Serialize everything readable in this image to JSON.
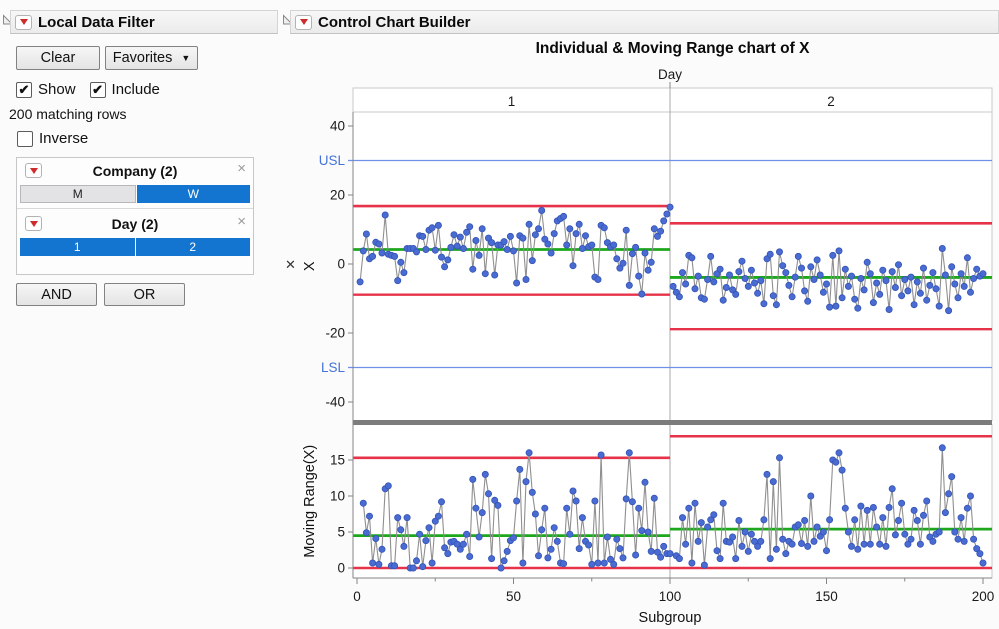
{
  "local_data_filter": {
    "title": "Local Data Filter",
    "clear_label": "Clear",
    "favorites_label": "Favorites",
    "show_label": "Show",
    "show_checked": true,
    "include_label": "Include",
    "include_checked": true,
    "matching_rows_text": "200 matching rows",
    "inverse_label": "Inverse",
    "inverse_checked": false,
    "filters": [
      {
        "label": "Company (2)",
        "values": [
          {
            "label": "M",
            "selected": false
          },
          {
            "label": "W",
            "selected": true
          }
        ]
      },
      {
        "label": "Day (2)",
        "values": [
          {
            "label": "1",
            "selected": true
          },
          {
            "label": "2",
            "selected": true
          }
        ]
      }
    ],
    "and_label": "AND",
    "or_label": "OR"
  },
  "report": {
    "title": "Control Chart Builder"
  },
  "colors": {
    "selection_blue": "#1375cf",
    "point_blue": "#4a6bd2",
    "point_edge_blue": "#3354b5",
    "connect_gray": "#8f8f8f",
    "limit_red": "#e73349",
    "center_green": "#1ca71c",
    "spec_blue": "#6f8fe8",
    "spec_label_blue": "#4472d8",
    "frame_gray": "#c8c8c8",
    "axis_gray": "#858585",
    "splitter_gray": "#7c7c7c",
    "menu_icon_red": "#cf2b2b"
  },
  "chart_data": {
    "type": "line",
    "title": "Individual & Moving Range chart of X",
    "phase_label": "Day",
    "phases": [
      "1",
      "2"
    ],
    "xlabel": "Subgroup",
    "xlim": [
      0,
      200
    ],
    "x_ticks_major": [
      0,
      50,
      100,
      150,
      200
    ],
    "x_ticks_minor": [
      25,
      75,
      125,
      175
    ],
    "grid": false,
    "legend": "none",
    "panels": [
      {
        "name": "Individuals",
        "ylabel": "X",
        "ylim": [
          -45,
          44
        ],
        "yticks": [
          40,
          20,
          0,
          -20,
          -40
        ],
        "spec_lines": [
          {
            "label": "USL",
            "value": 30
          },
          {
            "label": "LSL",
            "value": -30
          }
        ],
        "phase_limits": [
          {
            "phase": "1",
            "ucl": 16.8,
            "cl": 4.2,
            "lcl": -8.9
          },
          {
            "phase": "2",
            "ucl": 11.8,
            "cl": -3.9,
            "lcl": -18.9
          }
        ]
      },
      {
        "name": "Moving Range",
        "ylabel": "Moving Range(X)",
        "ylim": [
          -1.4,
          20
        ],
        "yticks": [
          0,
          5,
          10,
          15
        ],
        "spec_lines": [],
        "phase_limits": [
          {
            "phase": "1",
            "ucl": 15.3,
            "cl": 4.5,
            "lcl": 0
          },
          {
            "phase": "2",
            "ucl": 18.3,
            "cl": 5.4,
            "lcl": 0
          }
        ]
      }
    ],
    "series": [
      {
        "name": "X, Day 1",
        "x_start": 1,
        "values": [
          -5.2,
          3.8,
          8.7,
          1.5,
          2.2,
          6.3,
          5.8,
          3.2,
          14.2,
          2.8,
          2.5,
          2.2,
          -4.8,
          0.5,
          -2.5,
          4.5,
          4.5,
          4.5,
          3.5,
          8.2,
          8.0,
          4.2,
          9.8,
          10.5,
          4.0,
          11.2,
          2.0,
          -0.8,
          1.2,
          4.8,
          8.5,
          5.2,
          7.8,
          4.5,
          9.2,
          10.8,
          -1.5,
          6.8,
          2.5,
          10.2,
          -2.8,
          7.5,
          6.2,
          -3.2,
          5.5,
          5.5,
          6.5,
          4.2,
          8.0,
          3.8,
          -5.5,
          8.2,
          7.5,
          -4.5,
          11.5,
          1.0,
          8.5,
          10.2,
          15.5,
          7.2,
          5.8,
          3.2,
          8.8,
          12.5,
          13.2,
          13.8,
          5.5,
          10.2,
          -0.5,
          8.8,
          11.5,
          4.5,
          8.2,
          5.0,
          5.5,
          -3.8,
          -4.5,
          11.2,
          10.5,
          6.2,
          5.0,
          5.5,
          1.5,
          -1.2,
          0.2,
          9.8,
          -6.2,
          3.0,
          4.8,
          -3.5,
          -8.7,
          3.2,
          -1.8,
          0.5,
          10.2,
          8.0,
          9.5,
          12.5,
          14.5,
          16.5
        ]
      },
      {
        "name": "X, Day 2",
        "x_start": 101,
        "values": [
          -6.5,
          -8.2,
          -9.5,
          -2.5,
          -5.8,
          2.5,
          1.8,
          -7.2,
          -3.5,
          -9.8,
          -10.2,
          -4.5,
          2.2,
          -5.2,
          -2.8,
          -1.5,
          -10.5,
          -6.8,
          -3.2,
          -7.5,
          -8.8,
          -2.2,
          0.8,
          -4.2,
          -6.5,
          -1.8,
          -5.5,
          -8.5,
          -4.8,
          -11.5,
          1.5,
          2.8,
          -9.2,
          -11.8,
          3.5,
          -0.5,
          -2.5,
          -6.2,
          -9.5,
          -3.8,
          2.2,
          -1.2,
          -7.8,
          -10.8,
          -0.8,
          -4.5,
          1.2,
          -3.2,
          -8.2,
          -5.8,
          -12.5,
          2.5,
          -12.2,
          3.8,
          -9.8,
          -1.5,
          -6.5,
          -3.5,
          -10.2,
          -12.8,
          -4.2,
          -7.5,
          0.5,
          -2.8,
          -11.2,
          -5.5,
          -8.8,
          -1.8,
          -4.8,
          -13.2,
          -2.2,
          -6.8,
          -0.2,
          -9.2,
          -4.5,
          -7.8,
          -3.8,
          -11.8,
          -5.2,
          -8.5,
          -1.2,
          -10.5,
          -6.2,
          -2.5,
          -7.2,
          -12.2,
          4.5,
          -3.2,
          -13.5,
          -0.8,
          -5.8,
          -9.8,
          -2.8,
          -6.5,
          1.8,
          -8.2,
          -4.2,
          -1.5,
          -3.5,
          -2.8
        ]
      }
    ],
    "moving_range_rule": "MR[i] = |x[i] - x[i-1]| computed within each Day phase"
  }
}
